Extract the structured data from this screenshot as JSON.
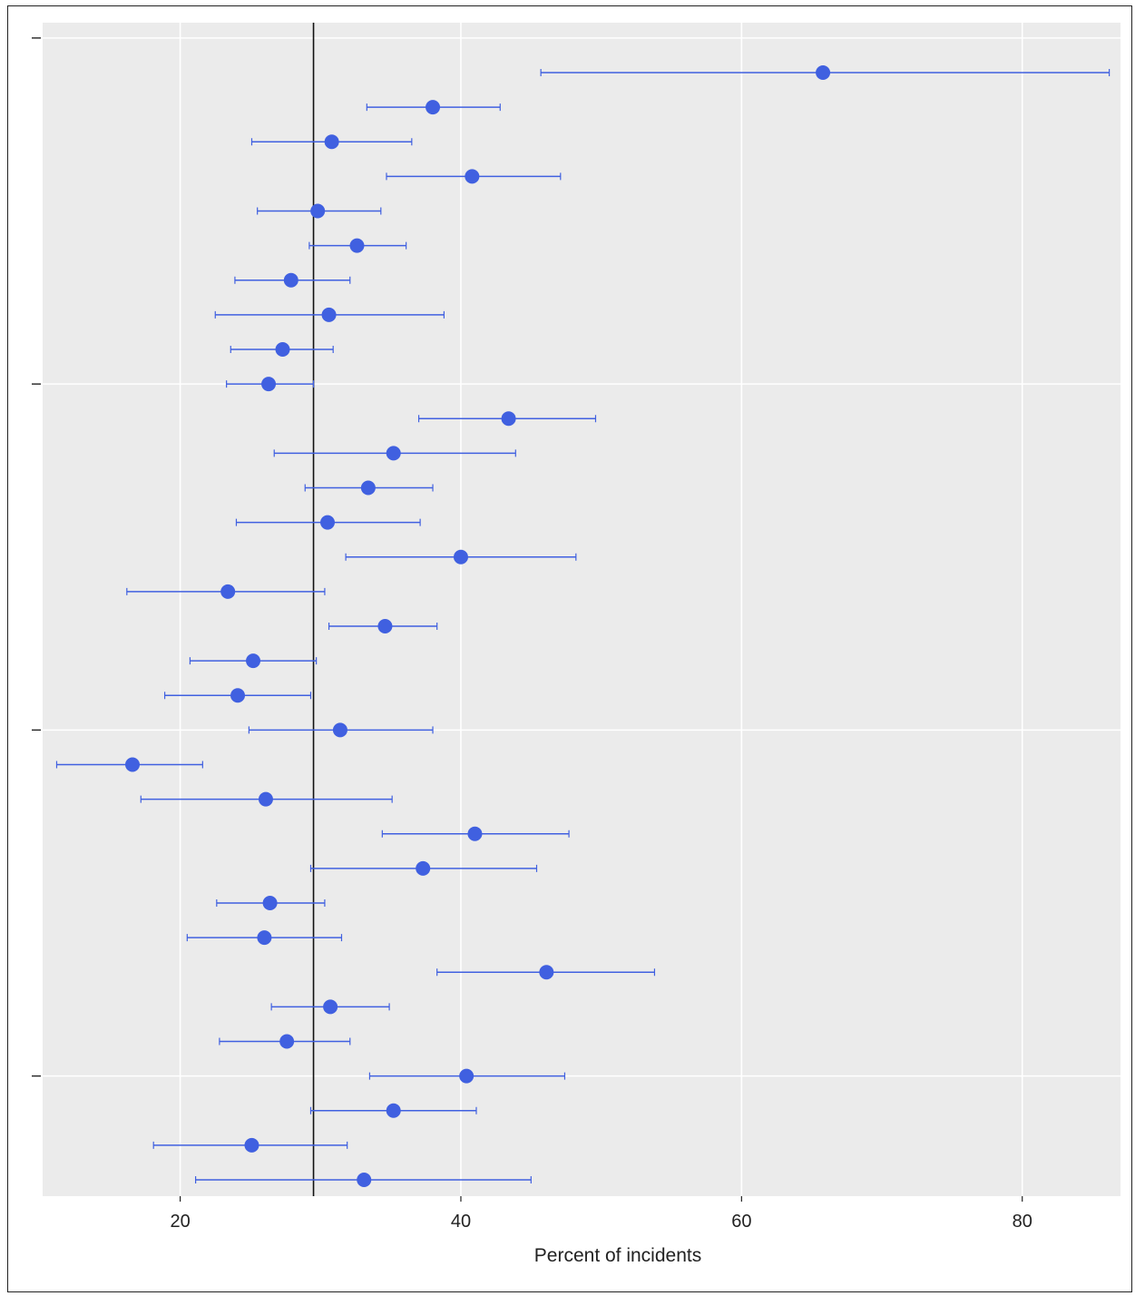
{
  "chart_data": {
    "type": "scatter",
    "subtype": "dot-with-error-bars",
    "title": "",
    "xlabel": "Percent of incidents",
    "ylabel": "",
    "xlim": [
      10.2,
      87.0
    ],
    "x_ticks": [
      20,
      40,
      60,
      80
    ],
    "x_tick_labels": [
      "20",
      "40",
      "60",
      "80"
    ],
    "reference_line_x": 29.5,
    "grid": true,
    "legend": "none",
    "colors": {
      "point": "#4060e0",
      "error_bar": "#4060e0",
      "reference_line": "#111111",
      "panel": "#ebebeb",
      "grid": "#ffffff"
    },
    "series": [
      {
        "points": [
          {
            "x": 65.8,
            "low": 45.7,
            "high": 86.2
          },
          {
            "x": 38.0,
            "low": 33.3,
            "high": 42.8
          },
          {
            "x": 30.8,
            "low": 25.1,
            "high": 36.5
          },
          {
            "x": 40.8,
            "low": 34.7,
            "high": 47.1
          },
          {
            "x": 29.8,
            "low": 25.5,
            "high": 34.3
          },
          {
            "x": 32.6,
            "low": 29.2,
            "high": 36.1
          },
          {
            "x": 27.9,
            "low": 23.9,
            "high": 32.1
          },
          {
            "x": 30.6,
            "low": 22.5,
            "high": 38.8
          },
          {
            "x": 27.3,
            "low": 23.6,
            "high": 30.9
          },
          {
            "x": 26.3,
            "low": 23.3,
            "high": 29.5
          },
          {
            "x": 43.4,
            "low": 37.0,
            "high": 49.6
          },
          {
            "x": 35.2,
            "low": 26.7,
            "high": 43.9
          },
          {
            "x": 33.4,
            "low": 28.9,
            "high": 38.0
          },
          {
            "x": 30.5,
            "low": 24.0,
            "high": 37.1
          },
          {
            "x": 40.0,
            "low": 31.8,
            "high": 48.2
          },
          {
            "x": 23.4,
            "low": 16.2,
            "high": 30.3
          },
          {
            "x": 34.6,
            "low": 30.6,
            "high": 38.3
          },
          {
            "x": 25.2,
            "low": 20.7,
            "high": 29.7
          },
          {
            "x": 24.1,
            "low": 18.9,
            "high": 29.3
          },
          {
            "x": 31.4,
            "low": 24.9,
            "high": 38.0
          },
          {
            "x": 16.6,
            "low": 11.2,
            "high": 21.6
          },
          {
            "x": 26.1,
            "low": 17.2,
            "high": 35.1
          },
          {
            "x": 41.0,
            "low": 34.4,
            "high": 47.7
          },
          {
            "x": 37.3,
            "low": 29.3,
            "high": 45.4
          },
          {
            "x": 26.4,
            "low": 22.6,
            "high": 30.3
          },
          {
            "x": 26.0,
            "low": 20.5,
            "high": 31.5
          },
          {
            "x": 46.1,
            "low": 38.3,
            "high": 53.8
          },
          {
            "x": 30.7,
            "low": 26.5,
            "high": 34.9
          },
          {
            "x": 27.6,
            "low": 22.8,
            "high": 32.1
          },
          {
            "x": 40.4,
            "low": 33.5,
            "high": 47.4
          },
          {
            "x": 35.2,
            "low": 29.3,
            "high": 41.1
          },
          {
            "x": 25.1,
            "low": 18.1,
            "high": 31.9
          },
          {
            "x": 33.1,
            "low": 21.1,
            "high": 45.0
          }
        ]
      }
    ]
  }
}
